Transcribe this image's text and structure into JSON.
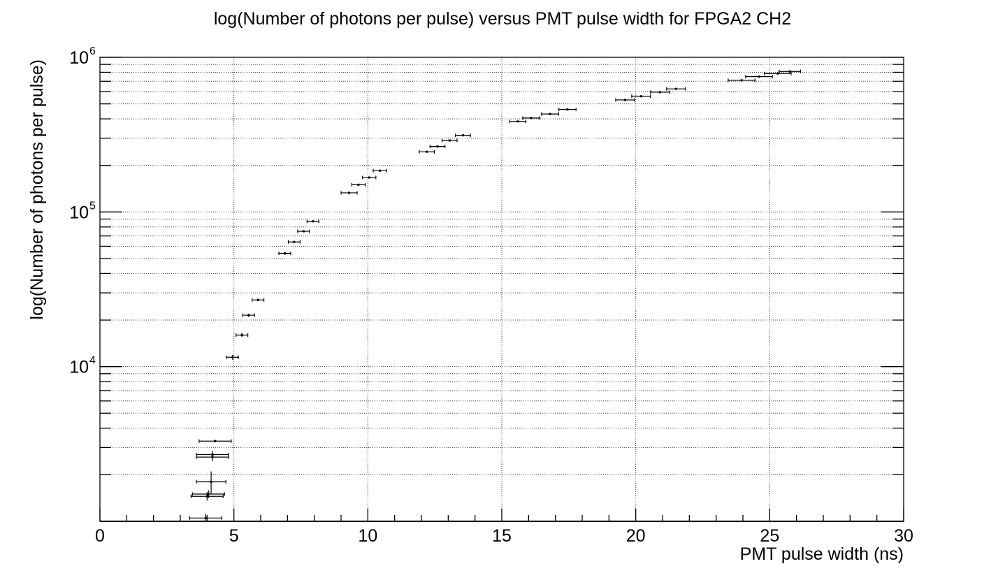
{
  "chart_data": {
    "type": "scatter",
    "title": "log(Number of photons per pulse) versus PMT pulse width for FPGA2 CH2",
    "xlabel": "PMT pulse width (ns)",
    "ylabel": "log(Number of photons per pulse)",
    "xlim": [
      0,
      30
    ],
    "ylim": [
      1000,
      1000000
    ],
    "y_scale": "log",
    "grid": true,
    "x_ticks": [
      "0",
      "5",
      "10",
      "15",
      "20",
      "25",
      "30"
    ],
    "y_tick_labels": [
      {
        "base": "10",
        "exp": "4"
      },
      {
        "base": "10",
        "exp": "5"
      },
      {
        "base": "10",
        "exp": "6"
      }
    ],
    "series": [
      {
        "points": [
          {
            "x": 3.95,
            "y": 1050,
            "xerr": 0.6,
            "yerr": 60
          },
          {
            "x": 4.05,
            "y": 1500,
            "xerr": 0.6,
            "yerr": 90
          },
          {
            "x": 4.0,
            "y": 1450,
            "xerr": 0.6,
            "yerr": 90
          },
          {
            "x": 4.15,
            "y": 1800,
            "xerr": 0.55,
            "yerr": 300
          },
          {
            "x": 4.2,
            "y": 2600,
            "xerr": 0.6,
            "yerr": 150
          },
          {
            "x": 4.2,
            "y": 2700,
            "xerr": 0.6,
            "yerr": 150
          },
          {
            "x": 4.3,
            "y": 3300,
            "xerr": 0.6,
            "yerr": 60
          },
          {
            "x": 4.95,
            "y": 11500,
            "xerr": 0.22,
            "yerr": 400
          },
          {
            "x": 5.3,
            "y": 16000,
            "xerr": 0.22,
            "yerr": 500
          },
          {
            "x": 5.55,
            "y": 21500,
            "xerr": 0.22,
            "yerr": 500
          },
          {
            "x": 5.9,
            "y": 27000,
            "xerr": 0.22,
            "yerr": 500
          },
          {
            "x": 6.9,
            "y": 54000,
            "xerr": 0.22,
            "yerr": 1000
          },
          {
            "x": 7.25,
            "y": 64000,
            "xerr": 0.22,
            "yerr": 1000
          },
          {
            "x": 7.6,
            "y": 75000,
            "xerr": 0.22,
            "yerr": 1000
          },
          {
            "x": 7.95,
            "y": 87000,
            "xerr": 0.22,
            "yerr": 1000
          },
          {
            "x": 9.3,
            "y": 133000,
            "xerr": 0.3,
            "yerr": 2000
          },
          {
            "x": 9.65,
            "y": 150000,
            "xerr": 0.25,
            "yerr": 2000
          },
          {
            "x": 10.05,
            "y": 167000,
            "xerr": 0.25,
            "yerr": 2000
          },
          {
            "x": 10.45,
            "y": 185000,
            "xerr": 0.25,
            "yerr": 2000
          },
          {
            "x": 12.2,
            "y": 245000,
            "xerr": 0.28,
            "yerr": 3000
          },
          {
            "x": 12.6,
            "y": 265000,
            "xerr": 0.28,
            "yerr": 3000
          },
          {
            "x": 13.05,
            "y": 290000,
            "xerr": 0.28,
            "yerr": 3000
          },
          {
            "x": 13.55,
            "y": 313000,
            "xerr": 0.28,
            "yerr": 3000
          },
          {
            "x": 15.6,
            "y": 385000,
            "xerr": 0.3,
            "yerr": 4000
          },
          {
            "x": 16.1,
            "y": 405000,
            "xerr": 0.32,
            "yerr": 4000
          },
          {
            "x": 16.8,
            "y": 430000,
            "xerr": 0.32,
            "yerr": 4000
          },
          {
            "x": 17.45,
            "y": 460000,
            "xerr": 0.32,
            "yerr": 4000
          },
          {
            "x": 19.6,
            "y": 530000,
            "xerr": 0.35,
            "yerr": 5000
          },
          {
            "x": 20.2,
            "y": 560000,
            "xerr": 0.35,
            "yerr": 5000
          },
          {
            "x": 20.9,
            "y": 595000,
            "xerr": 0.35,
            "yerr": 5000
          },
          {
            "x": 21.5,
            "y": 625000,
            "xerr": 0.35,
            "yerr": 5000
          },
          {
            "x": 23.95,
            "y": 710000,
            "xerr": 0.5,
            "yerr": 6000
          },
          {
            "x": 24.6,
            "y": 750000,
            "xerr": 0.5,
            "yerr": 6000
          },
          {
            "x": 25.3,
            "y": 785000,
            "xerr": 0.5,
            "yerr": 6000
          },
          {
            "x": 25.75,
            "y": 810000,
            "xerr": 0.4,
            "yerr": 6000
          }
        ]
      }
    ]
  }
}
